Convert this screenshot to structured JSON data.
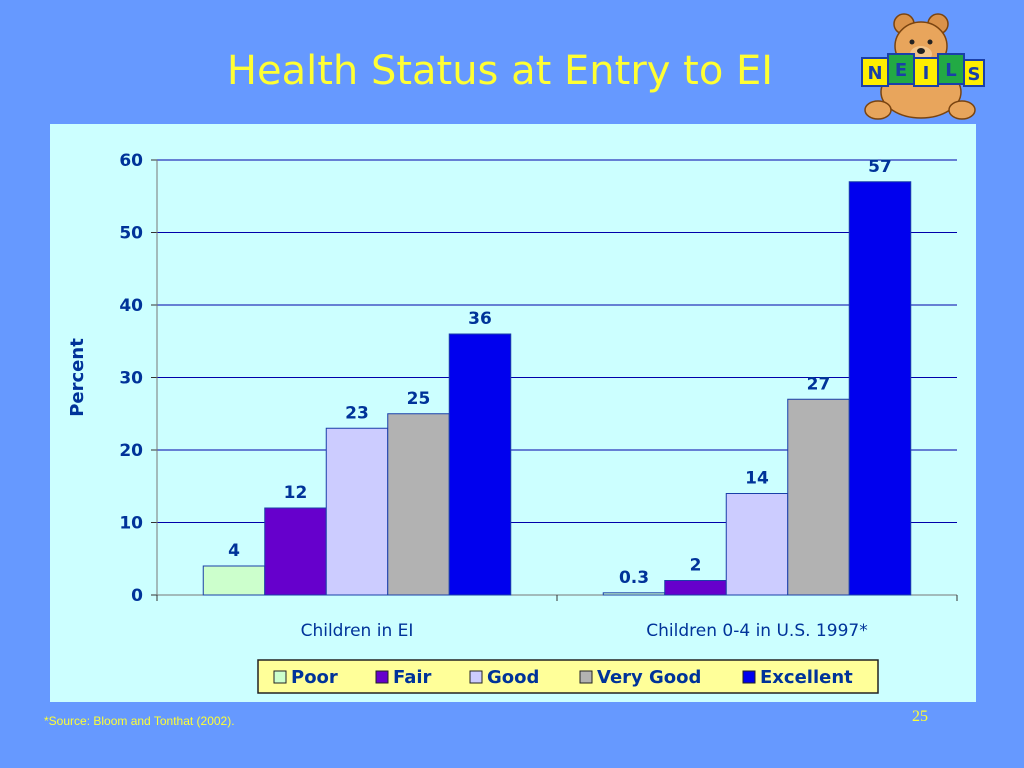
{
  "slide": {
    "title": "Health Status at Entry to EI",
    "footnote": "*Source: Bloom and Tonthat (2002).",
    "page_number": "25",
    "logo_text": "NEILS"
  },
  "colors": {
    "background": "#6699ff",
    "title": "#ffff33",
    "chart_area": "#ccffff",
    "text_blue": "#003399"
  },
  "chart_data": {
    "type": "bar",
    "title": "",
    "ylabel": "Percent",
    "xlabel": "",
    "ylim": [
      0,
      60
    ],
    "yticks": [
      0,
      10,
      20,
      30,
      40,
      50,
      60
    ],
    "grid": true,
    "legend_position": "bottom",
    "categories": [
      "Children in EI",
      "Children 0-4 in U.S. 1997*"
    ],
    "series": [
      {
        "name": "Poor",
        "color": "#ccffcc",
        "values": [
          4,
          0.3
        ],
        "labels": [
          "4",
          "0.3"
        ]
      },
      {
        "name": "Fair",
        "color": "#6600cc",
        "values": [
          12,
          2
        ],
        "labels": [
          "12",
          "2"
        ]
      },
      {
        "name": "Good",
        "color": "#ccccff",
        "values": [
          23,
          14
        ],
        "labels": [
          "23",
          "14"
        ]
      },
      {
        "name": "Very Good",
        "color": "#b2b2b2",
        "values": [
          25,
          27
        ],
        "labels": [
          "25",
          "27"
        ]
      },
      {
        "name": "Excellent",
        "color": "#0000ee",
        "values": [
          36,
          57
        ],
        "labels": [
          "36",
          "57"
        ]
      }
    ]
  }
}
